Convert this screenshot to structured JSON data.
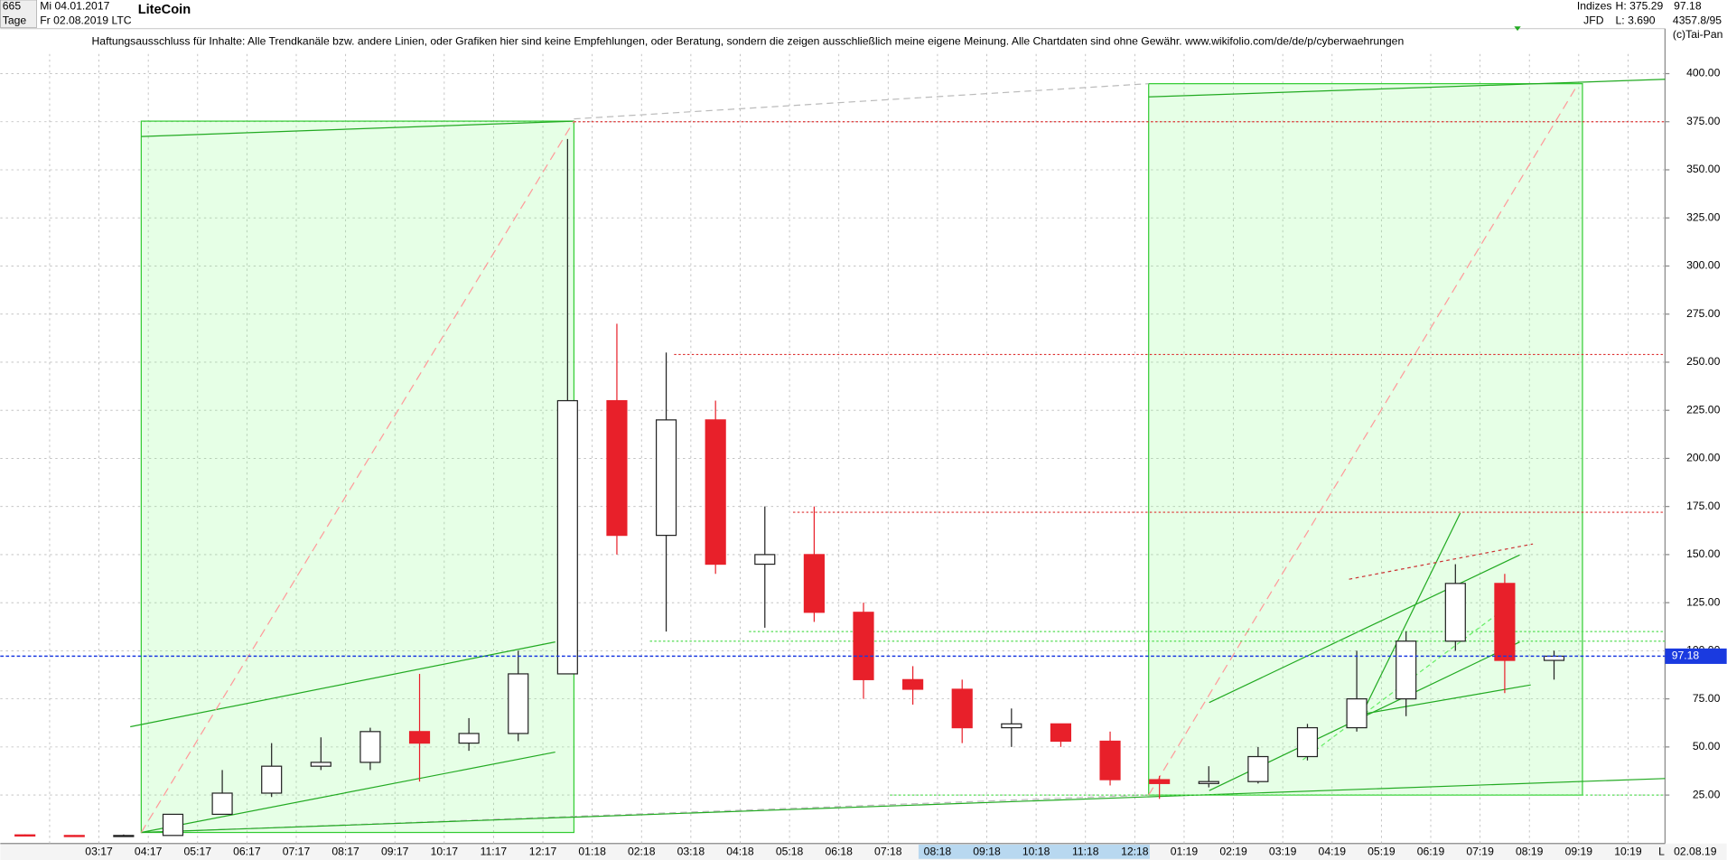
{
  "header": {
    "count": "665",
    "period": "Tage",
    "start_date": "Mi 04.01.2017",
    "end_date": "Fr 02.08.2019",
    "symbol": "LTC",
    "group": "Indizes",
    "broker": "JFD",
    "high": "H: 375.29",
    "low": "L: 3.690",
    "last": "97.18",
    "volume": "4357.8/95",
    "copyright": "(c)Tai-Pan",
    "axis_end": "02.08.19",
    "scale": "L"
  },
  "chart_data": {
    "type": "candlestick",
    "title": "LiteCoin",
    "subtitle": "Haftungsausschluss für Inhalte: Alle Trendkanäle bzw. andere Linien, oder Grafiken hier sind keine Empfehlungen, oder Beratung, sondern die zeigen ausschließlich meine eigene Meinung. Alle Chartdaten sind ohne Gewähr.  www.wikifolio.com/de/de/p/cyberwaehrungen",
    "categories": [
      null,
      null,
      "03:17",
      "04:17",
      "05:17",
      "06:17",
      "07:17",
      "08:17",
      "09:17",
      "10:17",
      "11:17",
      "12:17",
      "01:18",
      "02:18",
      "03:18",
      "04:18",
      "05:18",
      "06:18",
      "07:18",
      "08:18",
      "09:18",
      "10:18",
      "11:18",
      "12:18",
      "01:19",
      "02:19",
      "03:19",
      "04:19",
      "05:19",
      "06:19",
      "07:19",
      "08:19",
      "09:19",
      "10:19"
    ],
    "open": [
      4.3,
      4.0,
      3.8,
      4.0,
      15,
      26,
      40,
      42,
      58,
      52,
      57,
      88,
      230,
      160,
      220,
      145,
      150,
      120,
      85,
      80,
      60,
      62,
      53,
      33,
      31,
      32,
      45,
      60,
      75,
      105,
      135,
      95,
      null,
      null
    ],
    "high": [
      4.6,
      4.2,
      4.5,
      15,
      38,
      52,
      55,
      60,
      88,
      65,
      100,
      366,
      270,
      255,
      230,
      175,
      175,
      125,
      92,
      85,
      70,
      62,
      58,
      35,
      40,
      50,
      62,
      100,
      110,
      145,
      140,
      100,
      null,
      null
    ],
    "low": [
      3.7,
      3.6,
      3.6,
      4.0,
      15,
      24,
      38,
      38,
      32,
      48,
      53,
      88,
      150,
      110,
      140,
      112,
      115,
      75,
      72,
      52,
      50,
      50,
      30,
      23,
      29,
      31,
      43,
      58,
      66,
      100,
      78,
      85,
      null,
      null
    ],
    "close": [
      4.0,
      3.8,
      4.0,
      15,
      26,
      40,
      42,
      58,
      52,
      57,
      88,
      230,
      160,
      220,
      145,
      150,
      120,
      85,
      80,
      60,
      62,
      53,
      33,
      31,
      32,
      45,
      60,
      75,
      105,
      135,
      95,
      97.18,
      null,
      null
    ],
    "up_color": "#222222",
    "down_color": "#e8202a",
    "ylim": [
      0,
      410
    ],
    "yticks": [
      {
        "value": 25,
        "label": "25.00"
      },
      {
        "value": 50,
        "label": "50.00"
      },
      {
        "value": 75,
        "label": "75.00"
      },
      {
        "value": 100,
        "label": "100.00"
      },
      {
        "value": 125,
        "label": "125.00"
      },
      {
        "value": 150,
        "label": "150.00"
      },
      {
        "value": 175,
        "label": "175.00"
      },
      {
        "value": 200,
        "label": "200.00"
      },
      {
        "value": 225,
        "label": "225.00"
      },
      {
        "value": 250,
        "label": "250.00"
      },
      {
        "value": 275,
        "label": "275.00"
      },
      {
        "value": 300,
        "label": "300.00"
      },
      {
        "value": 325,
        "label": "325.00"
      },
      {
        "value": 350,
        "label": "350.00"
      },
      {
        "value": 375,
        "label": "375.00"
      },
      {
        "value": 400,
        "label": "400.00"
      }
    ],
    "grid": true,
    "levels": [
      {
        "value": 375,
        "color": "#d33"
      },
      {
        "value": 254,
        "color": "#d33"
      },
      {
        "value": 172,
        "color": "#d33"
      },
      {
        "value": 110,
        "color": "#5d5"
      },
      {
        "value": 105,
        "color": "#5d5"
      },
      {
        "value": 25,
        "color": "#5d5"
      }
    ],
    "last_price": 97.18,
    "last_price_label": "97.18",
    "last_color": "#1a3ae0"
  }
}
